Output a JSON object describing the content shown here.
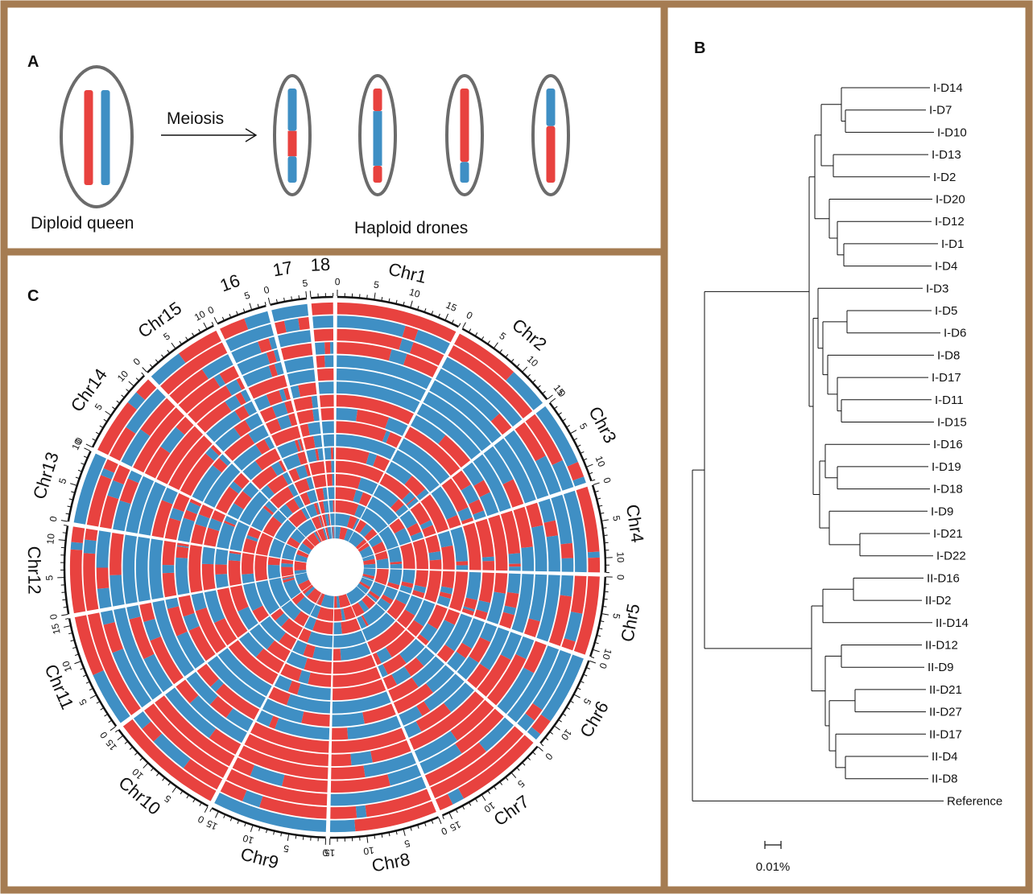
{
  "panel_a": {
    "label": "A",
    "arrow_label": "Meiosis",
    "queen_caption": "Diploid queen",
    "drones_caption": "Haploid drones",
    "colors": {
      "red": "#e8423f",
      "blue": "#3f8fc4",
      "outline": "#6b6b6b"
    },
    "queen": {
      "chromatids": [
        [
          [
            "r",
            1.0
          ]
        ],
        [
          [
            "b",
            1.0
          ]
        ]
      ]
    },
    "drones": [
      {
        "segments": [
          [
            "b",
            0.45
          ],
          [
            "r",
            0.27
          ],
          [
            "b",
            0.28
          ]
        ]
      },
      {
        "segments": [
          [
            "r",
            0.24
          ],
          [
            "b",
            0.58
          ],
          [
            "r",
            0.18
          ]
        ]
      },
      {
        "segments": [
          [
            "r",
            0.78
          ],
          [
            "b",
            0.22
          ]
        ]
      },
      {
        "segments": [
          [
            "b",
            0.4
          ],
          [
            "r",
            0.6
          ]
        ]
      }
    ]
  },
  "panel_b": {
    "label": "B",
    "leaves": [
      "I-D14",
      "I-D7",
      "I-D10",
      "I-D13",
      "I-D2",
      "I-D20",
      "I-D12",
      "I-D1",
      "I-D4",
      "I-D3",
      "I-D5",
      "I-D6",
      "I-D8",
      "I-D17",
      "I-D11",
      "I-D15",
      "I-D16",
      "I-D19",
      "I-D18",
      "I-D9",
      "I-D21",
      "I-D22",
      "II-D16",
      "II-D2",
      "II-D14",
      "II-D12",
      "II-D9",
      "II-D21",
      "II-D27",
      "II-D17",
      "II-D4",
      "II-D8",
      "Reference"
    ],
    "scale_label": "0.01%"
  },
  "panel_c": {
    "label": "C",
    "rings": 18,
    "chromosomes": [
      {
        "name": "Chr1",
        "length": 17
      },
      {
        "name": "Chr2",
        "length": 15
      },
      {
        "name": "Chr3",
        "length": 12
      },
      {
        "name": "Chr4",
        "length": 12
      },
      {
        "name": "Chr5",
        "length": 11
      },
      {
        "name": "Chr6",
        "length": 13
      },
      {
        "name": "Chr7",
        "length": 16
      },
      {
        "name": "Chr8",
        "length": 15
      },
      {
        "name": "Chr9",
        "length": 16
      },
      {
        "name": "Chr10",
        "length": 16
      },
      {
        "name": "Chr11",
        "length": 16
      },
      {
        "name": "Chr12",
        "length": 12
      },
      {
        "name": "Chr13",
        "length": 10
      },
      {
        "name": "Chr14",
        "length": 12
      },
      {
        "name": "Chr15",
        "length": 11
      },
      {
        "name": "16",
        "length": 7
      },
      {
        "name": "17",
        "length": 5
      },
      {
        "name": "18",
        "length": 3
      }
    ]
  }
}
